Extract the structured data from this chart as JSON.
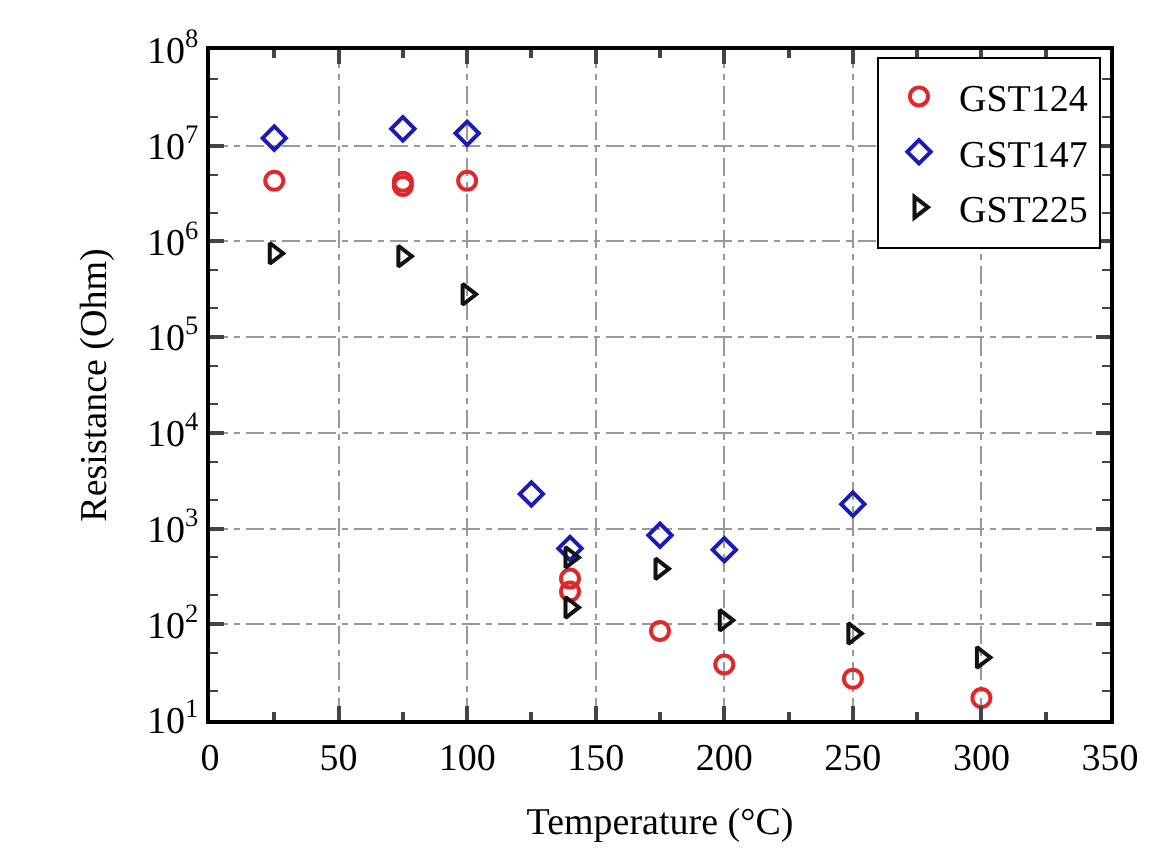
{
  "chart_data": {
    "type": "scatter",
    "xlabel": "Temperature (°C)",
    "ylabel": "Resistance (Ohm)",
    "log": "y",
    "xlim": [
      0,
      350
    ],
    "xticks": [
      0,
      50,
      100,
      150,
      200,
      250,
      300,
      350
    ],
    "ylim": [
      10,
      100000000
    ],
    "yticks": [
      {
        "value": 10,
        "label": "10$^{1}$"
      },
      {
        "value": 100,
        "label": "10$^{2}$"
      },
      {
        "value": 1000,
        "label": "10$^{3}$"
      },
      {
        "value": 10000,
        "label": "10$^{4}$"
      },
      {
        "value": 100000,
        "label": "10$^{5}$"
      },
      {
        "value": 1000000,
        "label": "10$^{6}$"
      },
      {
        "value": 10000000,
        "label": "10$^{7}$"
      },
      {
        "value": 100000000,
        "label": "10$^{8}$"
      }
    ],
    "grid": true,
    "legend": "top right",
    "series": [
      {
        "name": "GST124",
        "color": "#e0282a",
        "marker": "circle",
        "x": [
          25,
          75,
          75,
          100,
          140,
          140,
          175,
          200,
          250,
          300
        ],
        "values": [
          4300000,
          3800000,
          4200000,
          4300000,
          300,
          220,
          85,
          38,
          27,
          17
        ]
      },
      {
        "name": "GST147",
        "color": "#1a1ab4",
        "marker": "diamond",
        "x": [
          25,
          75,
          100,
          125,
          140,
          175,
          200,
          250
        ],
        "values": [
          12000000,
          15000000,
          13500000,
          2300,
          620,
          850,
          600,
          1800
        ]
      },
      {
        "name": "GST225",
        "color": "#111111",
        "marker": "triangle",
        "x": [
          25,
          75,
          100,
          140,
          140,
          175,
          200,
          250,
          300
        ],
        "values": [
          750000,
          700000,
          280000,
          500,
          150,
          380,
          110,
          80,
          45
        ]
      }
    ]
  }
}
